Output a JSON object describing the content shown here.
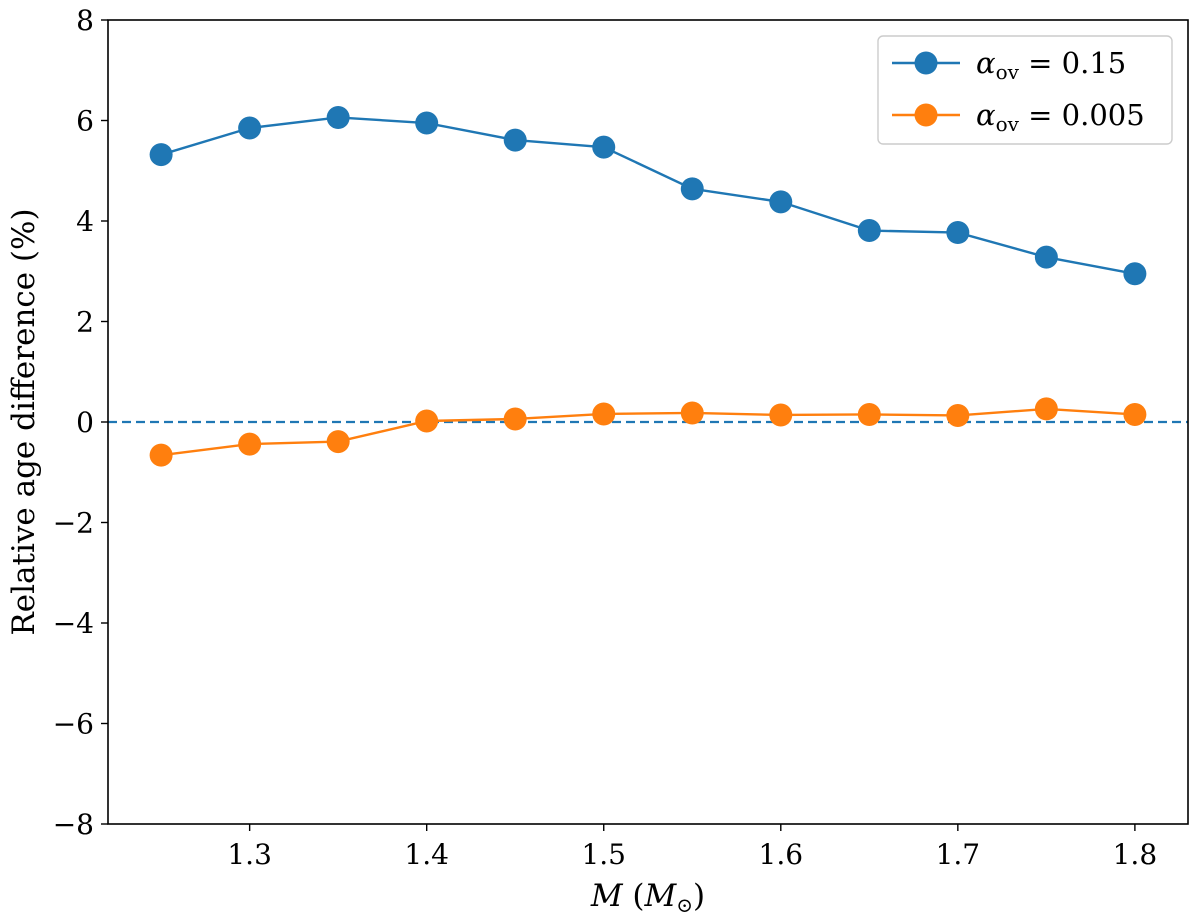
{
  "chart_data": {
    "type": "line",
    "title": "",
    "xlabel": "M (M⊙)",
    "xlabel_parts": {
      "var": "M",
      "open": " (",
      "sym": "M",
      "sub": "⊙",
      "close": ")"
    },
    "ylabel": "Relative age difference (%)",
    "xlim": [
      1.22,
      1.83
    ],
    "ylim": [
      -8,
      8
    ],
    "xticks": [
      1.3,
      1.4,
      1.5,
      1.6,
      1.7,
      1.8
    ],
    "xtick_labels": [
      "1.3",
      "1.4",
      "1.5",
      "1.6",
      "1.7",
      "1.8"
    ],
    "yticks": [
      -8,
      -6,
      -4,
      -2,
      0,
      2,
      4,
      6,
      8
    ],
    "ytick_labels": [
      "−8",
      "−6",
      "−4",
      "−2",
      "0",
      "2",
      "4",
      "6",
      "8"
    ],
    "x": [
      1.25,
      1.3,
      1.35,
      1.4,
      1.45,
      1.5,
      1.55,
      1.6,
      1.65,
      1.7,
      1.75,
      1.8
    ],
    "series": [
      {
        "name": "αov = 0.15",
        "label_parts": {
          "greek": "α",
          "sub": "ov",
          "rest": " = 0.15"
        },
        "color": "#1f77b4",
        "values": [
          5.32,
          5.85,
          6.06,
          5.95,
          5.61,
          5.47,
          4.64,
          4.38,
          3.81,
          3.77,
          3.28,
          2.95
        ]
      },
      {
        "name": "αov = 0.005",
        "label_parts": {
          "greek": "α",
          "sub": "ov",
          "rest": " = 0.005"
        },
        "color": "#ff7f0e",
        "values": [
          -0.66,
          -0.44,
          -0.39,
          0.02,
          0.06,
          0.16,
          0.18,
          0.14,
          0.15,
          0.13,
          0.26,
          0.15
        ]
      }
    ],
    "reference_line": {
      "y": 0,
      "style": "dashed",
      "color": "#1f77b4"
    },
    "legend_position": "top-right",
    "grid": false
  }
}
